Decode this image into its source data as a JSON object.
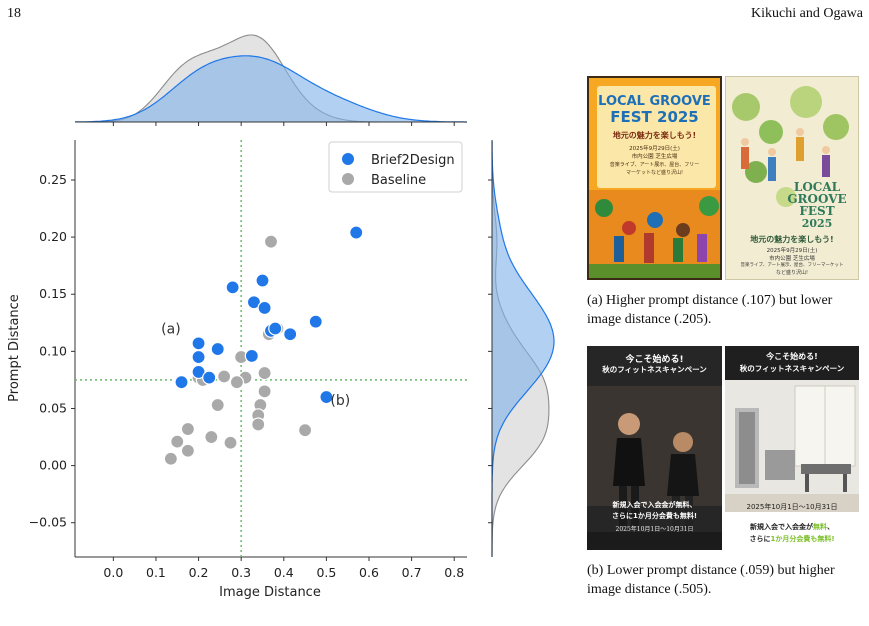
{
  "header": {
    "page_number": "18",
    "running_head": "Kikuchi and Ogawa"
  },
  "chart_data": {
    "type": "scatter",
    "xlabel": "Image Distance",
    "ylabel": "Prompt Distance",
    "xlim": [
      -0.09,
      0.83
    ],
    "ylim": [
      -0.08,
      0.285
    ],
    "x_ticks": [
      "0.0",
      "0.1",
      "0.2",
      "0.3",
      "0.4",
      "0.5",
      "0.6",
      "0.7",
      "0.8"
    ],
    "y_ticks": [
      "−0.05",
      "0.00",
      "0.05",
      "0.10",
      "0.15",
      "0.20",
      "0.25"
    ],
    "x_tick_values": [
      0.0,
      0.1,
      0.2,
      0.3,
      0.4,
      0.5,
      0.6,
      0.7,
      0.8
    ],
    "y_tick_values": [
      -0.05,
      0.0,
      0.05,
      0.1,
      0.15,
      0.2,
      0.25
    ],
    "reference_lines": {
      "x": 0.3,
      "y": 0.075,
      "color": "#66bb6a"
    },
    "legend": {
      "placement": "top-right"
    },
    "marginal_plots": [
      "top",
      "right"
    ],
    "series": [
      {
        "name": "Brief2Design",
        "color": "#1f77e8",
        "x": [
          0.57,
          0.5,
          0.475,
          0.35,
          0.28,
          0.33,
          0.355,
          0.37,
          0.415,
          0.38,
          0.325,
          0.2,
          0.2,
          0.245,
          0.2,
          0.225,
          0.16
        ],
        "y": [
          0.204,
          0.06,
          0.126,
          0.162,
          0.156,
          0.143,
          0.138,
          0.118,
          0.115,
          0.12,
          0.096,
          0.107,
          0.095,
          0.102,
          0.082,
          0.077,
          0.073
        ]
      },
      {
        "name": "Baseline",
        "color": "#a9a9a9",
        "x": [
          0.37,
          0.385,
          0.365,
          0.3,
          0.31,
          0.29,
          0.355,
          0.345,
          0.34,
          0.34,
          0.26,
          0.245,
          0.23,
          0.275,
          0.175,
          0.15,
          0.175,
          0.135,
          0.135,
          0.45,
          0.2,
          0.21,
          0.355
        ],
        "y": [
          0.196,
          0.12,
          0.115,
          0.095,
          0.077,
          0.073,
          0.081,
          0.053,
          0.044,
          0.036,
          0.078,
          0.053,
          0.025,
          0.02,
          0.032,
          0.021,
          0.013,
          0.006,
          0.006,
          0.031,
          0.077,
          0.075,
          0.065
        ]
      }
    ],
    "annotations": [
      {
        "text": "(a)",
        "x": 0.205,
        "y": 0.107
      },
      {
        "text": "(b)",
        "x": 0.5,
        "y": 0.06
      }
    ]
  },
  "posters": {
    "a_left": {
      "title_line1": "LOCAL GROOVE",
      "title_line2": "FEST 2025",
      "subtitle": "地元の魅力を楽しもう!",
      "date": "2025年9月29日(土)",
      "venue": "市内公園 芝生広場",
      "desc1": "音楽ライブ、アート展示、屋台、フリー",
      "desc2": "マーケットなど盛り沢山!"
    },
    "a_right": {
      "title_line1": "LOCAL",
      "title_line2": "GROOVE",
      "title_line3": "FEST",
      "title_line4": "2025",
      "subtitle": "地元の魅力を楽しもう!",
      "date": "2025年9月29日(土)",
      "venue": "市内公園 芝生広場",
      "desc1": "音楽ライブ、アート展示、屋台、フリーマーケット",
      "desc2": "など盛り沢山!"
    },
    "b_left": {
      "title1": "今こそ始める!",
      "title2": "秋のフィットネスキャンペーン",
      "offer1": "新規入会で入会金が無料、",
      "offer2": "さらに1か月分会費も無料!",
      "date": "2025年10月1日〜10月31日"
    },
    "b_right": {
      "title1": "今こそ始める!",
      "title2": "秋のフィットネスキャンペーン",
      "date": "2025年10月1日〜10月31日",
      "offer1_pre": "新規入会で入会金が",
      "offer1_hl": "無料",
      "offer1_post": "、",
      "offer2_pre": "さらに",
      "offer2_hl": "1か月分会費も無料!"
    }
  },
  "captions": {
    "a": "(a) Higher prompt distance (.107) but lower image distance (.205).",
    "b": "(b) Lower prompt distance (.059) but higher image distance (.505)."
  }
}
